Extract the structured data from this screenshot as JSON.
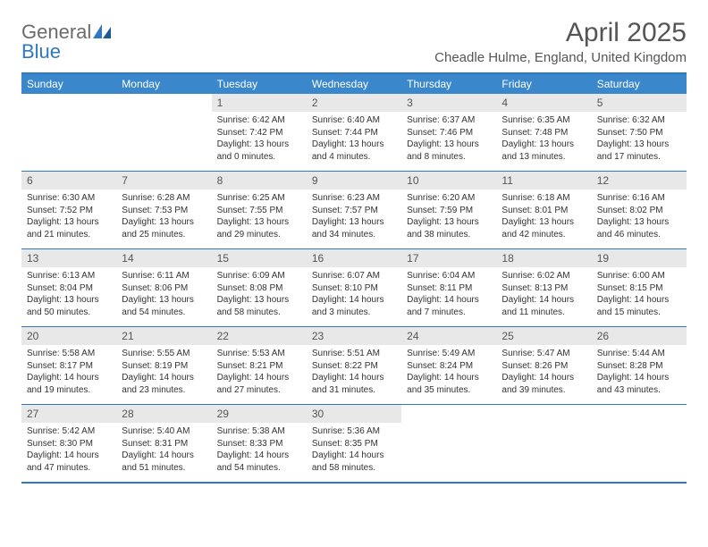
{
  "brand": {
    "name_gray": "General",
    "name_blue": "Blue"
  },
  "title": "April 2025",
  "location": "Cheadle Hulme, England, United Kingdom",
  "colors": {
    "header_bg": "#3b87cc",
    "header_border": "#2f78c4",
    "daynum_bg": "#e8e8e8",
    "text": "#333333",
    "title_text": "#555555"
  },
  "day_names": [
    "Sunday",
    "Monday",
    "Tuesday",
    "Wednesday",
    "Thursday",
    "Friday",
    "Saturday"
  ],
  "weeks": [
    [
      {
        "n": "",
        "sunrise": "",
        "sunset": "",
        "daylight": ""
      },
      {
        "n": "",
        "sunrise": "",
        "sunset": "",
        "daylight": ""
      },
      {
        "n": "1",
        "sunrise": "Sunrise: 6:42 AM",
        "sunset": "Sunset: 7:42 PM",
        "daylight": "Daylight: 13 hours and 0 minutes."
      },
      {
        "n": "2",
        "sunrise": "Sunrise: 6:40 AM",
        "sunset": "Sunset: 7:44 PM",
        "daylight": "Daylight: 13 hours and 4 minutes."
      },
      {
        "n": "3",
        "sunrise": "Sunrise: 6:37 AM",
        "sunset": "Sunset: 7:46 PM",
        "daylight": "Daylight: 13 hours and 8 minutes."
      },
      {
        "n": "4",
        "sunrise": "Sunrise: 6:35 AM",
        "sunset": "Sunset: 7:48 PM",
        "daylight": "Daylight: 13 hours and 13 minutes."
      },
      {
        "n": "5",
        "sunrise": "Sunrise: 6:32 AM",
        "sunset": "Sunset: 7:50 PM",
        "daylight": "Daylight: 13 hours and 17 minutes."
      }
    ],
    [
      {
        "n": "6",
        "sunrise": "Sunrise: 6:30 AM",
        "sunset": "Sunset: 7:52 PM",
        "daylight": "Daylight: 13 hours and 21 minutes."
      },
      {
        "n": "7",
        "sunrise": "Sunrise: 6:28 AM",
        "sunset": "Sunset: 7:53 PM",
        "daylight": "Daylight: 13 hours and 25 minutes."
      },
      {
        "n": "8",
        "sunrise": "Sunrise: 6:25 AM",
        "sunset": "Sunset: 7:55 PM",
        "daylight": "Daylight: 13 hours and 29 minutes."
      },
      {
        "n": "9",
        "sunrise": "Sunrise: 6:23 AM",
        "sunset": "Sunset: 7:57 PM",
        "daylight": "Daylight: 13 hours and 34 minutes."
      },
      {
        "n": "10",
        "sunrise": "Sunrise: 6:20 AM",
        "sunset": "Sunset: 7:59 PM",
        "daylight": "Daylight: 13 hours and 38 minutes."
      },
      {
        "n": "11",
        "sunrise": "Sunrise: 6:18 AM",
        "sunset": "Sunset: 8:01 PM",
        "daylight": "Daylight: 13 hours and 42 minutes."
      },
      {
        "n": "12",
        "sunrise": "Sunrise: 6:16 AM",
        "sunset": "Sunset: 8:02 PM",
        "daylight": "Daylight: 13 hours and 46 minutes."
      }
    ],
    [
      {
        "n": "13",
        "sunrise": "Sunrise: 6:13 AM",
        "sunset": "Sunset: 8:04 PM",
        "daylight": "Daylight: 13 hours and 50 minutes."
      },
      {
        "n": "14",
        "sunrise": "Sunrise: 6:11 AM",
        "sunset": "Sunset: 8:06 PM",
        "daylight": "Daylight: 13 hours and 54 minutes."
      },
      {
        "n": "15",
        "sunrise": "Sunrise: 6:09 AM",
        "sunset": "Sunset: 8:08 PM",
        "daylight": "Daylight: 13 hours and 58 minutes."
      },
      {
        "n": "16",
        "sunrise": "Sunrise: 6:07 AM",
        "sunset": "Sunset: 8:10 PM",
        "daylight": "Daylight: 14 hours and 3 minutes."
      },
      {
        "n": "17",
        "sunrise": "Sunrise: 6:04 AM",
        "sunset": "Sunset: 8:11 PM",
        "daylight": "Daylight: 14 hours and 7 minutes."
      },
      {
        "n": "18",
        "sunrise": "Sunrise: 6:02 AM",
        "sunset": "Sunset: 8:13 PM",
        "daylight": "Daylight: 14 hours and 11 minutes."
      },
      {
        "n": "19",
        "sunrise": "Sunrise: 6:00 AM",
        "sunset": "Sunset: 8:15 PM",
        "daylight": "Daylight: 14 hours and 15 minutes."
      }
    ],
    [
      {
        "n": "20",
        "sunrise": "Sunrise: 5:58 AM",
        "sunset": "Sunset: 8:17 PM",
        "daylight": "Daylight: 14 hours and 19 minutes."
      },
      {
        "n": "21",
        "sunrise": "Sunrise: 5:55 AM",
        "sunset": "Sunset: 8:19 PM",
        "daylight": "Daylight: 14 hours and 23 minutes."
      },
      {
        "n": "22",
        "sunrise": "Sunrise: 5:53 AM",
        "sunset": "Sunset: 8:21 PM",
        "daylight": "Daylight: 14 hours and 27 minutes."
      },
      {
        "n": "23",
        "sunrise": "Sunrise: 5:51 AM",
        "sunset": "Sunset: 8:22 PM",
        "daylight": "Daylight: 14 hours and 31 minutes."
      },
      {
        "n": "24",
        "sunrise": "Sunrise: 5:49 AM",
        "sunset": "Sunset: 8:24 PM",
        "daylight": "Daylight: 14 hours and 35 minutes."
      },
      {
        "n": "25",
        "sunrise": "Sunrise: 5:47 AM",
        "sunset": "Sunset: 8:26 PM",
        "daylight": "Daylight: 14 hours and 39 minutes."
      },
      {
        "n": "26",
        "sunrise": "Sunrise: 5:44 AM",
        "sunset": "Sunset: 8:28 PM",
        "daylight": "Daylight: 14 hours and 43 minutes."
      }
    ],
    [
      {
        "n": "27",
        "sunrise": "Sunrise: 5:42 AM",
        "sunset": "Sunset: 8:30 PM",
        "daylight": "Daylight: 14 hours and 47 minutes."
      },
      {
        "n": "28",
        "sunrise": "Sunrise: 5:40 AM",
        "sunset": "Sunset: 8:31 PM",
        "daylight": "Daylight: 14 hours and 51 minutes."
      },
      {
        "n": "29",
        "sunrise": "Sunrise: 5:38 AM",
        "sunset": "Sunset: 8:33 PM",
        "daylight": "Daylight: 14 hours and 54 minutes."
      },
      {
        "n": "30",
        "sunrise": "Sunrise: 5:36 AM",
        "sunset": "Sunset: 8:35 PM",
        "daylight": "Daylight: 14 hours and 58 minutes."
      },
      {
        "n": "",
        "sunrise": "",
        "sunset": "",
        "daylight": ""
      },
      {
        "n": "",
        "sunrise": "",
        "sunset": "",
        "daylight": ""
      },
      {
        "n": "",
        "sunrise": "",
        "sunset": "",
        "daylight": ""
      }
    ]
  ]
}
